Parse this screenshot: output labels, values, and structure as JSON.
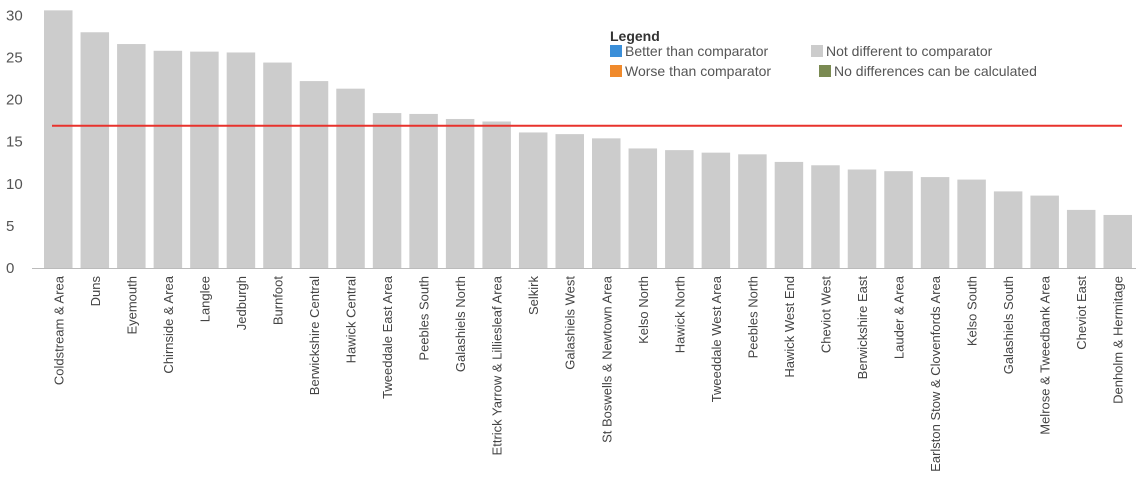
{
  "chart_data": {
    "type": "bar",
    "categories": [
      "Coldstream & Area",
      "Duns",
      "Eyemouth",
      "Chirnside & Area",
      "Langlee",
      "Jedburgh",
      "Burnfoot",
      "Berwickshire Central",
      "Hawick Central",
      "Tweeddale East Area",
      "Peebles South",
      "Galashiels North",
      "Ettrick Yarrow & Lilliesleaf Area",
      "Selkirk",
      "Galashiels West",
      "St Boswells & Newtown Area",
      "Kelso North",
      "Hawick North",
      "Tweeddale West Area",
      "Peebles North",
      "Hawick West End",
      "Cheviot West",
      "Berwickshire East",
      "Lauder & Area",
      "Earlston Stow & Clovenfords Area",
      "Kelso South",
      "Galashiels South",
      "Melrose & Tweedbank Area",
      "Cheviot East",
      "Denholm & Hermitage"
    ],
    "values": [
      30.6,
      28.0,
      26.6,
      25.8,
      25.7,
      25.6,
      24.4,
      22.2,
      21.3,
      18.4,
      18.3,
      17.7,
      17.4,
      16.1,
      15.9,
      15.4,
      14.2,
      14.0,
      13.7,
      13.5,
      12.6,
      12.2,
      11.7,
      11.5,
      10.8,
      10.5,
      9.1,
      8.6,
      6.9,
      6.3
    ],
    "comparator_line": 16.9,
    "ylim": [
      0,
      31
    ],
    "yticks": [
      0,
      5,
      10,
      15,
      20,
      25,
      30
    ],
    "grid": false,
    "legend_placement": "top-right",
    "bar_color": "#cccccc",
    "line_color": "#e8322c",
    "legend": {
      "title": "Legend",
      "entries": [
        {
          "label": "Better than comparator",
          "color": "#3b8fd9"
        },
        {
          "label": "Not different to comparator",
          "color": "#cccccc"
        },
        {
          "label": "Worse than comparator",
          "color": "#f08a2c"
        },
        {
          "label": "No differences can be calculated",
          "color": "#7a8a52"
        }
      ]
    }
  }
}
